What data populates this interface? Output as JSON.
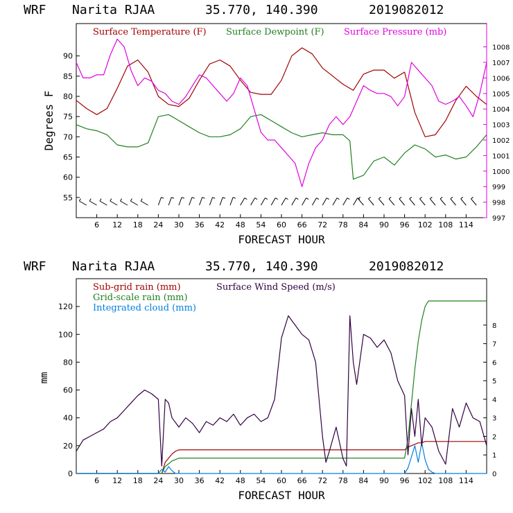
{
  "chart_data": [
    {
      "type": "line",
      "header": {
        "model": "WRF",
        "station": "Narita RJAA",
        "coords": "35.770, 140.390",
        "init": "2019082012"
      },
      "xlabel": "FORECAST HOUR",
      "ylabel": "Degrees F",
      "xlim": [
        0,
        120
      ],
      "xticks": [
        "6",
        "12",
        "18",
        "24",
        "30",
        "36",
        "42",
        "48",
        "54",
        "60",
        "66",
        "72",
        "78",
        "84",
        "90",
        "96",
        "102",
        "108",
        "114"
      ],
      "ylim": [
        50,
        98
      ],
      "yticks": [
        "55",
        "60",
        "65",
        "70",
        "75",
        "80",
        "85",
        "90"
      ],
      "y2lim": [
        997,
        1009.5
      ],
      "y2ticks": [
        "997",
        "998",
        "999",
        "1000",
        "1001",
        "1002",
        "1003",
        "1004",
        "1005",
        "1006",
        "1007",
        "1008"
      ],
      "legend": [
        {
          "label": "Surface Temperature (F)",
          "color": "#a00000"
        },
        {
          "label": "Surface Dewpoint (F)",
          "color": "#208020"
        },
        {
          "label": "Surface Pressure (mb)",
          "color": "#e000e0"
        }
      ],
      "series": [
        {
          "name": "Surface Temperature (F)",
          "color": "#a00000",
          "axis": "left",
          "x": [
            0,
            3,
            6,
            9,
            12,
            15,
            18,
            21,
            24,
            27,
            30,
            33,
            36,
            39,
            42,
            45,
            48,
            51,
            54,
            57,
            60,
            63,
            66,
            69,
            72,
            75,
            78,
            81,
            84,
            87,
            90,
            93,
            96,
            99,
            102,
            105,
            108,
            111,
            114,
            117,
            120
          ],
          "y": [
            79,
            77,
            75.5,
            77,
            82,
            87.5,
            89,
            86,
            80,
            78,
            77.5,
            79.5,
            84,
            88,
            89,
            87.5,
            84,
            81,
            80.5,
            80.5,
            84,
            90,
            92,
            90.5,
            87,
            85,
            83,
            81.5,
            85.5,
            86.5,
            86.5,
            84.5,
            86,
            76,
            70,
            70.5,
            74,
            79,
            82.5,
            80,
            78
          ]
        },
        {
          "name": "Surface Dewpoint (F)",
          "color": "#208020",
          "axis": "left",
          "x": [
            0,
            3,
            6,
            9,
            12,
            15,
            18,
            21,
            24,
            27,
            30,
            33,
            36,
            39,
            42,
            45,
            48,
            51,
            54,
            57,
            60,
            63,
            66,
            69,
            72,
            75,
            78,
            80,
            81,
            84,
            87,
            90,
            93,
            96,
            99,
            102,
            105,
            108,
            111,
            114,
            117,
            120
          ],
          "y": [
            73,
            72,
            71.5,
            70.5,
            68,
            67.5,
            67.5,
            68.5,
            75,
            75.5,
            74,
            72.5,
            71,
            70,
            70,
            70.5,
            72,
            75,
            75.5,
            74,
            72.5,
            71,
            70,
            70.5,
            71,
            70.5,
            70.5,
            69,
            59.5,
            60.5,
            64,
            65,
            63,
            66,
            68,
            67,
            65,
            65.5,
            64.5,
            65,
            67.5,
            70.5
          ]
        },
        {
          "name": "Surface Pressure (mb)",
          "color": "#e000e0",
          "axis": "right",
          "x": [
            0,
            2,
            4,
            6,
            8,
            10,
            12,
            14,
            16,
            18,
            20,
            22,
            24,
            26,
            28,
            30,
            32,
            34,
            36,
            38,
            40,
            42,
            44,
            46,
            48,
            50,
            52,
            54,
            56,
            58,
            60,
            62,
            64,
            66,
            68,
            70,
            72,
            74,
            76,
            78,
            80,
            82,
            84,
            86,
            88,
            90,
            92,
            94,
            96,
            98,
            100,
            102,
            104,
            106,
            108,
            110,
            112,
            114,
            116,
            118,
            120
          ],
          "y": [
            1007,
            1006,
            1006,
            1006.2,
            1006.2,
            1007.5,
            1008.5,
            1008,
            1006.5,
            1005.5,
            1006,
            1005.8,
            1005.2,
            1005,
            1004.5,
            1004.3,
            1004.8,
            1005.5,
            1006.2,
            1006,
            1005.5,
            1005,
            1004.5,
            1005,
            1006,
            1005.5,
            1004,
            1002.5,
            1002,
            1002,
            1001.5,
            1001,
            1000.5,
            999,
            1000.5,
            1001.5,
            1002,
            1003,
            1003.5,
            1003,
            1003.5,
            1004.5,
            1005.5,
            1005.2,
            1005,
            1005,
            1004.8,
            1004.2,
            1004.8,
            1007,
            1006.5,
            1006,
            1005.5,
            1004.5,
            1004.3,
            1004.5,
            1004.8,
            1004.2,
            1003.5,
            1005,
            1007
          ]
        }
      ],
      "wind_barbs": "row of wind barbs along the bottom of the panel"
    },
    {
      "type": "line",
      "header": {
        "model": "WRF",
        "station": "Narita RJAA",
        "coords": "35.770, 140.390",
        "init": "2019082012"
      },
      "xlabel": "FORECAST HOUR",
      "ylabel": "mm",
      "xlim": [
        0,
        120
      ],
      "xticks": [
        "6",
        "12",
        "18",
        "24",
        "30",
        "36",
        "42",
        "48",
        "54",
        "60",
        "66",
        "72",
        "78",
        "84",
        "90",
        "96",
        "102",
        "108",
        "114"
      ],
      "ylim": [
        0,
        140
      ],
      "yticks": [
        "0",
        "20",
        "40",
        "60",
        "80",
        "100",
        "120"
      ],
      "y2lim": [
        0,
        10.5
      ],
      "y2ticks": [
        "0",
        "1",
        "2",
        "3",
        "4",
        "5",
        "6",
        "7",
        "8"
      ],
      "legend": [
        {
          "label": "Sub-grid rain (mm)",
          "color": "#a00000"
        },
        {
          "label": "Surface Wind Speed (m/s)",
          "color": "#300040"
        },
        {
          "label": "Grid-scale rain (mm)",
          "color": "#208020"
        },
        {
          "label": "Integrated cloud (mm)",
          "color": "#0080e0"
        }
      ],
      "series": [
        {
          "name": "Sub-grid rain (mm)",
          "color": "#a00000",
          "axis": "left",
          "x": [
            0,
            25,
            26,
            27,
            28,
            29,
            30,
            60,
            96,
            97,
            98,
            99,
            100,
            101,
            102,
            110,
            120
          ],
          "y": [
            0,
            0,
            8,
            11,
            14,
            16,
            17,
            17,
            17,
            19,
            20,
            21,
            22,
            22,
            23,
            23,
            23
          ]
        },
        {
          "name": "Grid-scale rain (mm)",
          "color": "#208020",
          "axis": "left",
          "x": [
            0,
            25,
            26,
            27,
            28,
            29,
            30,
            60,
            96,
            97,
            98,
            99,
            100,
            101,
            102,
            103,
            104,
            110,
            120
          ],
          "y": [
            0,
            0,
            5,
            7,
            9,
            10,
            11,
            11,
            11,
            25,
            50,
            75,
            95,
            110,
            120,
            124,
            124,
            124,
            124
          ]
        },
        {
          "name": "Integrated cloud (mm)",
          "color": "#0080e0",
          "axis": "left",
          "x": [
            0,
            24,
            25,
            26,
            27,
            28,
            29,
            30,
            60,
            96,
            97,
            98,
            99,
            100,
            101,
            102,
            103,
            104,
            105,
            120
          ],
          "y": [
            0,
            0,
            3,
            1,
            5,
            2,
            0,
            0,
            0,
            0,
            4,
            12,
            20,
            8,
            22,
            10,
            3,
            1,
            0,
            0
          ]
        },
        {
          "name": "Surface Wind Speed (m/s)",
          "color": "#300040",
          "axis": "right",
          "x": [
            0,
            2,
            4,
            6,
            8,
            10,
            12,
            14,
            16,
            18,
            20,
            22,
            24,
            25,
            26,
            27,
            28,
            30,
            32,
            34,
            36,
            38,
            40,
            42,
            44,
            46,
            48,
            50,
            52,
            54,
            56,
            58,
            60,
            62,
            64,
            66,
            68,
            70,
            72,
            73,
            74,
            76,
            78,
            79,
            80,
            81,
            82,
            84,
            86,
            88,
            90,
            92,
            94,
            96,
            97,
            98,
            99,
            100,
            101,
            102,
            104,
            106,
            108,
            110,
            112,
            114,
            116,
            118,
            120
          ],
          "y": [
            1.2,
            1.8,
            2,
            2.2,
            2.4,
            2.8,
            3,
            3.4,
            3.8,
            4.2,
            4.5,
            4.3,
            4,
            0.4,
            4,
            3.8,
            3,
            2.5,
            3,
            2.7,
            2.2,
            2.8,
            2.6,
            3,
            2.8,
            3.2,
            2.6,
            3,
            3.2,
            2.8,
            3,
            4,
            7.3,
            8.5,
            8,
            7.5,
            7.2,
            6,
            2,
            0.6,
            1.2,
            2.5,
            0.8,
            0.4,
            8.5,
            6,
            4.8,
            7.5,
            7.3,
            6.8,
            7.2,
            6.5,
            5,
            4.2,
            1,
            3.5,
            2,
            4,
            1.5,
            3,
            2.5,
            1.2,
            0.5,
            3.5,
            2.5,
            3.8,
            3,
            2.8,
            1.5
          ]
        }
      ]
    }
  ]
}
